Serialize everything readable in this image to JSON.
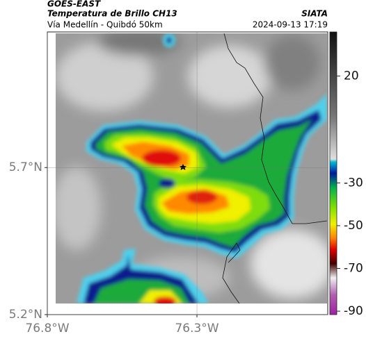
{
  "header": {
    "title": "GOES-EAST",
    "subtitle": "Temperatura de Brillo CH13",
    "route": "Vía Medellín - Quibdó 50km",
    "source": "SIATA",
    "timestamp": "2024-09-13 17:19"
  },
  "map": {
    "xlim": [
      -76.8,
      -75.863
    ],
    "ylim": [
      5.2,
      6.161
    ],
    "xticks": [
      {
        "value": -76.8,
        "label": "76.8°W"
      },
      {
        "value": -76.3,
        "label": "76.3°W"
      }
    ],
    "yticks": [
      {
        "value": 5.2,
        "label": "5.2°N"
      },
      {
        "value": 5.7,
        "label": "5.7°N"
      }
    ],
    "grid": true
  },
  "colorbar": {
    "lim": [
      -91.6,
      40.6
    ],
    "ticks": [
      20,
      -30,
      -50,
      -70,
      -90
    ]
  }
}
